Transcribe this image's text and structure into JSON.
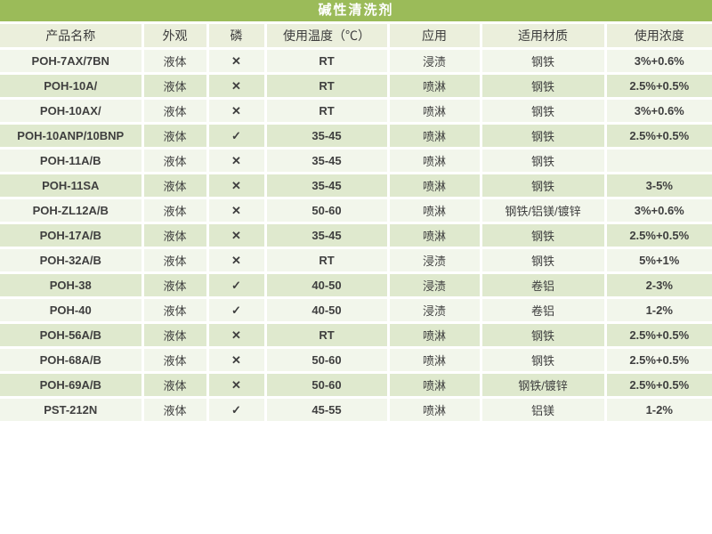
{
  "title": "碱性清洗剂",
  "colors": {
    "title_bg": "#9bbb59",
    "title_text": "#ffffff",
    "header_bg": "#ebefdc",
    "row_light": "#f2f6eb",
    "row_dark": "#dfe9ce",
    "divider": "#ffffff",
    "text": "#3f3f3f"
  },
  "symbols": {
    "no_phosphorus": "✕",
    "has_phosphorus": "✓"
  },
  "table": {
    "columns": [
      "产品名称",
      "外观",
      "磷",
      "使用温度（℃）",
      "应用",
      "适用材质",
      "使用浓度"
    ],
    "rows": [
      [
        "POH-7AX/7BN",
        "液体",
        "✕",
        "RT",
        "浸渍",
        "钢铁",
        "3%+0.6%"
      ],
      [
        "POH-10A/",
        "液体",
        "✕",
        "RT",
        "喷淋",
        "钢铁",
        "2.5%+0.5%"
      ],
      [
        "POH-10AX/",
        "液体",
        "✕",
        "RT",
        "喷淋",
        "钢铁",
        "3%+0.6%"
      ],
      [
        "POH-10ANP/10BNP",
        "液体",
        "✓",
        "35-45",
        "喷淋",
        "钢铁",
        "2.5%+0.5%"
      ],
      [
        "POH-11A/B",
        "液体",
        "✕",
        "35-45",
        "喷淋",
        "钢铁",
        ""
      ],
      [
        "POH-11SA",
        "液体",
        "✕",
        "35-45",
        "喷淋",
        "钢铁",
        "3-5%"
      ],
      [
        "POH-ZL12A/B",
        "液体",
        "✕",
        "50-60",
        "喷淋",
        "钢铁/铝镁/镀锌",
        "3%+0.6%"
      ],
      [
        "POH-17A/B",
        "液体",
        "✕",
        "35-45",
        "喷淋",
        "钢铁",
        "2.5%+0.5%"
      ],
      [
        "POH-32A/B",
        "液体",
        "✕",
        "RT",
        "浸渍",
        "钢铁",
        "5%+1%"
      ],
      [
        "POH-38",
        "液体",
        "✓",
        "40-50",
        "浸渍",
        "卷铝",
        "2-3%"
      ],
      [
        "POH-40",
        "液体",
        "✓",
        "40-50",
        "浸渍",
        "卷铝",
        "1-2%"
      ],
      [
        "POH-56A/B",
        "液体",
        "✕",
        "RT",
        "喷淋",
        "钢铁",
        "2.5%+0.5%"
      ],
      [
        "POH-68A/B",
        "液体",
        "✕",
        "50-60",
        "喷淋",
        "钢铁",
        "2.5%+0.5%"
      ],
      [
        "POH-69A/B",
        "液体",
        "✕",
        "50-60",
        "喷淋",
        "钢铁/镀锌",
        "2.5%+0.5%"
      ],
      [
        "PST-212N",
        "液体",
        "✓",
        "45-55",
        "喷淋",
        "铝镁",
        "1-2%"
      ]
    ]
  }
}
